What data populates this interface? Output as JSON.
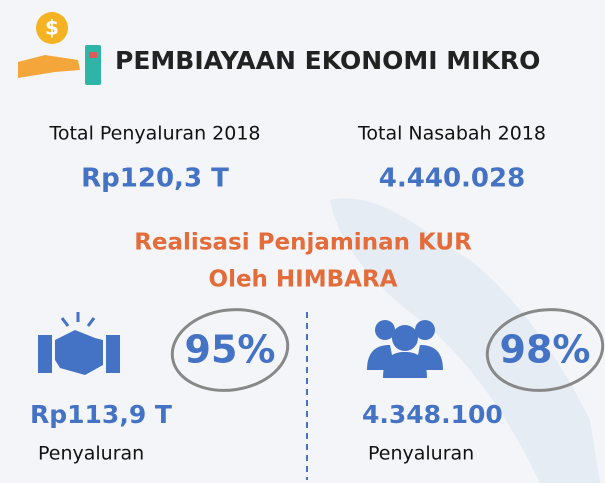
{
  "title": "PEMBIAYAAN EKONOMI MIKRO",
  "stats": [
    {
      "label": "Total Penyaluran 2018",
      "value": "Rp120,3 T"
    },
    {
      "label": "Total Nasabah 2018",
      "value": "4.440.028"
    }
  ],
  "subtitle": [
    "Realisasi Penjaminan KUR",
    "Oleh HIMBARA"
  ],
  "panels": [
    {
      "percent": "95%",
      "amount": "Rp113,9 T",
      "label": "Penyaluran"
    },
    {
      "percent": "98%",
      "amount": "4.348.100",
      "label": "Penyaluran"
    }
  ]
}
